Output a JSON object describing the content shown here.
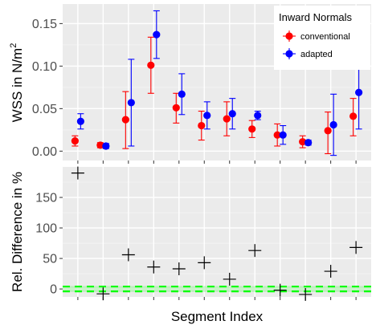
{
  "chart_data": [
    {
      "type": "scatter",
      "title": "",
      "xlabel": "",
      "ylabel": "WSS in N/m",
      "ylabel_superscript": "2",
      "x": [
        1,
        2,
        3,
        4,
        5,
        6,
        7,
        8,
        9,
        10,
        11,
        12
      ],
      "xlim": [
        0.4,
        12.6
      ],
      "ylim": [
        -0.011,
        0.173
      ],
      "yticks": [
        0.0,
        0.05,
        0.1,
        0.15
      ],
      "ytick_labels": [
        "0.00",
        "0.05",
        "0.10",
        "0.15"
      ],
      "grid": true,
      "error_bars": true,
      "legend": {
        "title": "Inward Normals",
        "position": "top-right"
      },
      "series": [
        {
          "name": "conventional",
          "color": "#ff0000",
          "values": [
            0.012,
            0.007,
            0.037,
            0.101,
            0.051,
            0.03,
            0.038,
            0.026,
            0.019,
            0.011,
            0.024,
            0.041
          ],
          "err_low": [
            0.006,
            0.004,
            0.003,
            0.068,
            0.033,
            0.013,
            0.018,
            0.016,
            0.006,
            0.004,
            -0.003,
            0.018
          ],
          "err_high": [
            0.018,
            0.01,
            0.07,
            0.134,
            0.068,
            0.047,
            0.058,
            0.036,
            0.032,
            0.018,
            0.046,
            0.062
          ]
        },
        {
          "name": "adapted",
          "color": "#0000ff",
          "values": [
            0.035,
            0.006,
            0.057,
            0.137,
            0.067,
            0.042,
            0.044,
            0.042,
            0.019,
            0.01,
            0.031,
            0.069
          ],
          "err_low": [
            0.026,
            0.003,
            0.006,
            0.109,
            0.043,
            0.026,
            0.026,
            0.037,
            0.008,
            0.007,
            -0.005,
            0.026
          ],
          "err_high": [
            0.044,
            0.009,
            0.108,
            0.165,
            0.091,
            0.058,
            0.062,
            0.047,
            0.03,
            0.013,
            0.067,
            0.113
          ]
        }
      ]
    },
    {
      "type": "scatter",
      "title": "",
      "xlabel": "Segment Index",
      "ylabel": "Rel. Difference in %",
      "x": [
        1,
        2,
        3,
        4,
        5,
        6,
        7,
        8,
        9,
        10,
        11,
        12
      ],
      "xlim": [
        0.4,
        12.6
      ],
      "ylim": [
        -13,
        200
      ],
      "yticks": [
        0,
        50,
        100,
        150
      ],
      "ytick_labels": [
        "0",
        "50",
        "100",
        "150"
      ],
      "grid": true,
      "marker": "plus",
      "series": [
        {
          "color": "#000000",
          "values": [
            190,
            -8,
            56,
            36,
            33,
            43,
            16,
            63,
            -2,
            -9,
            29,
            68
          ]
        }
      ],
      "reference_lines": {
        "color": "#00ff00",
        "style": "dashed",
        "values": [
          4,
          -4
        ]
      },
      "reference_band": {
        "color": "#9cf09c",
        "range": [
          -5,
          5
        ]
      }
    }
  ]
}
